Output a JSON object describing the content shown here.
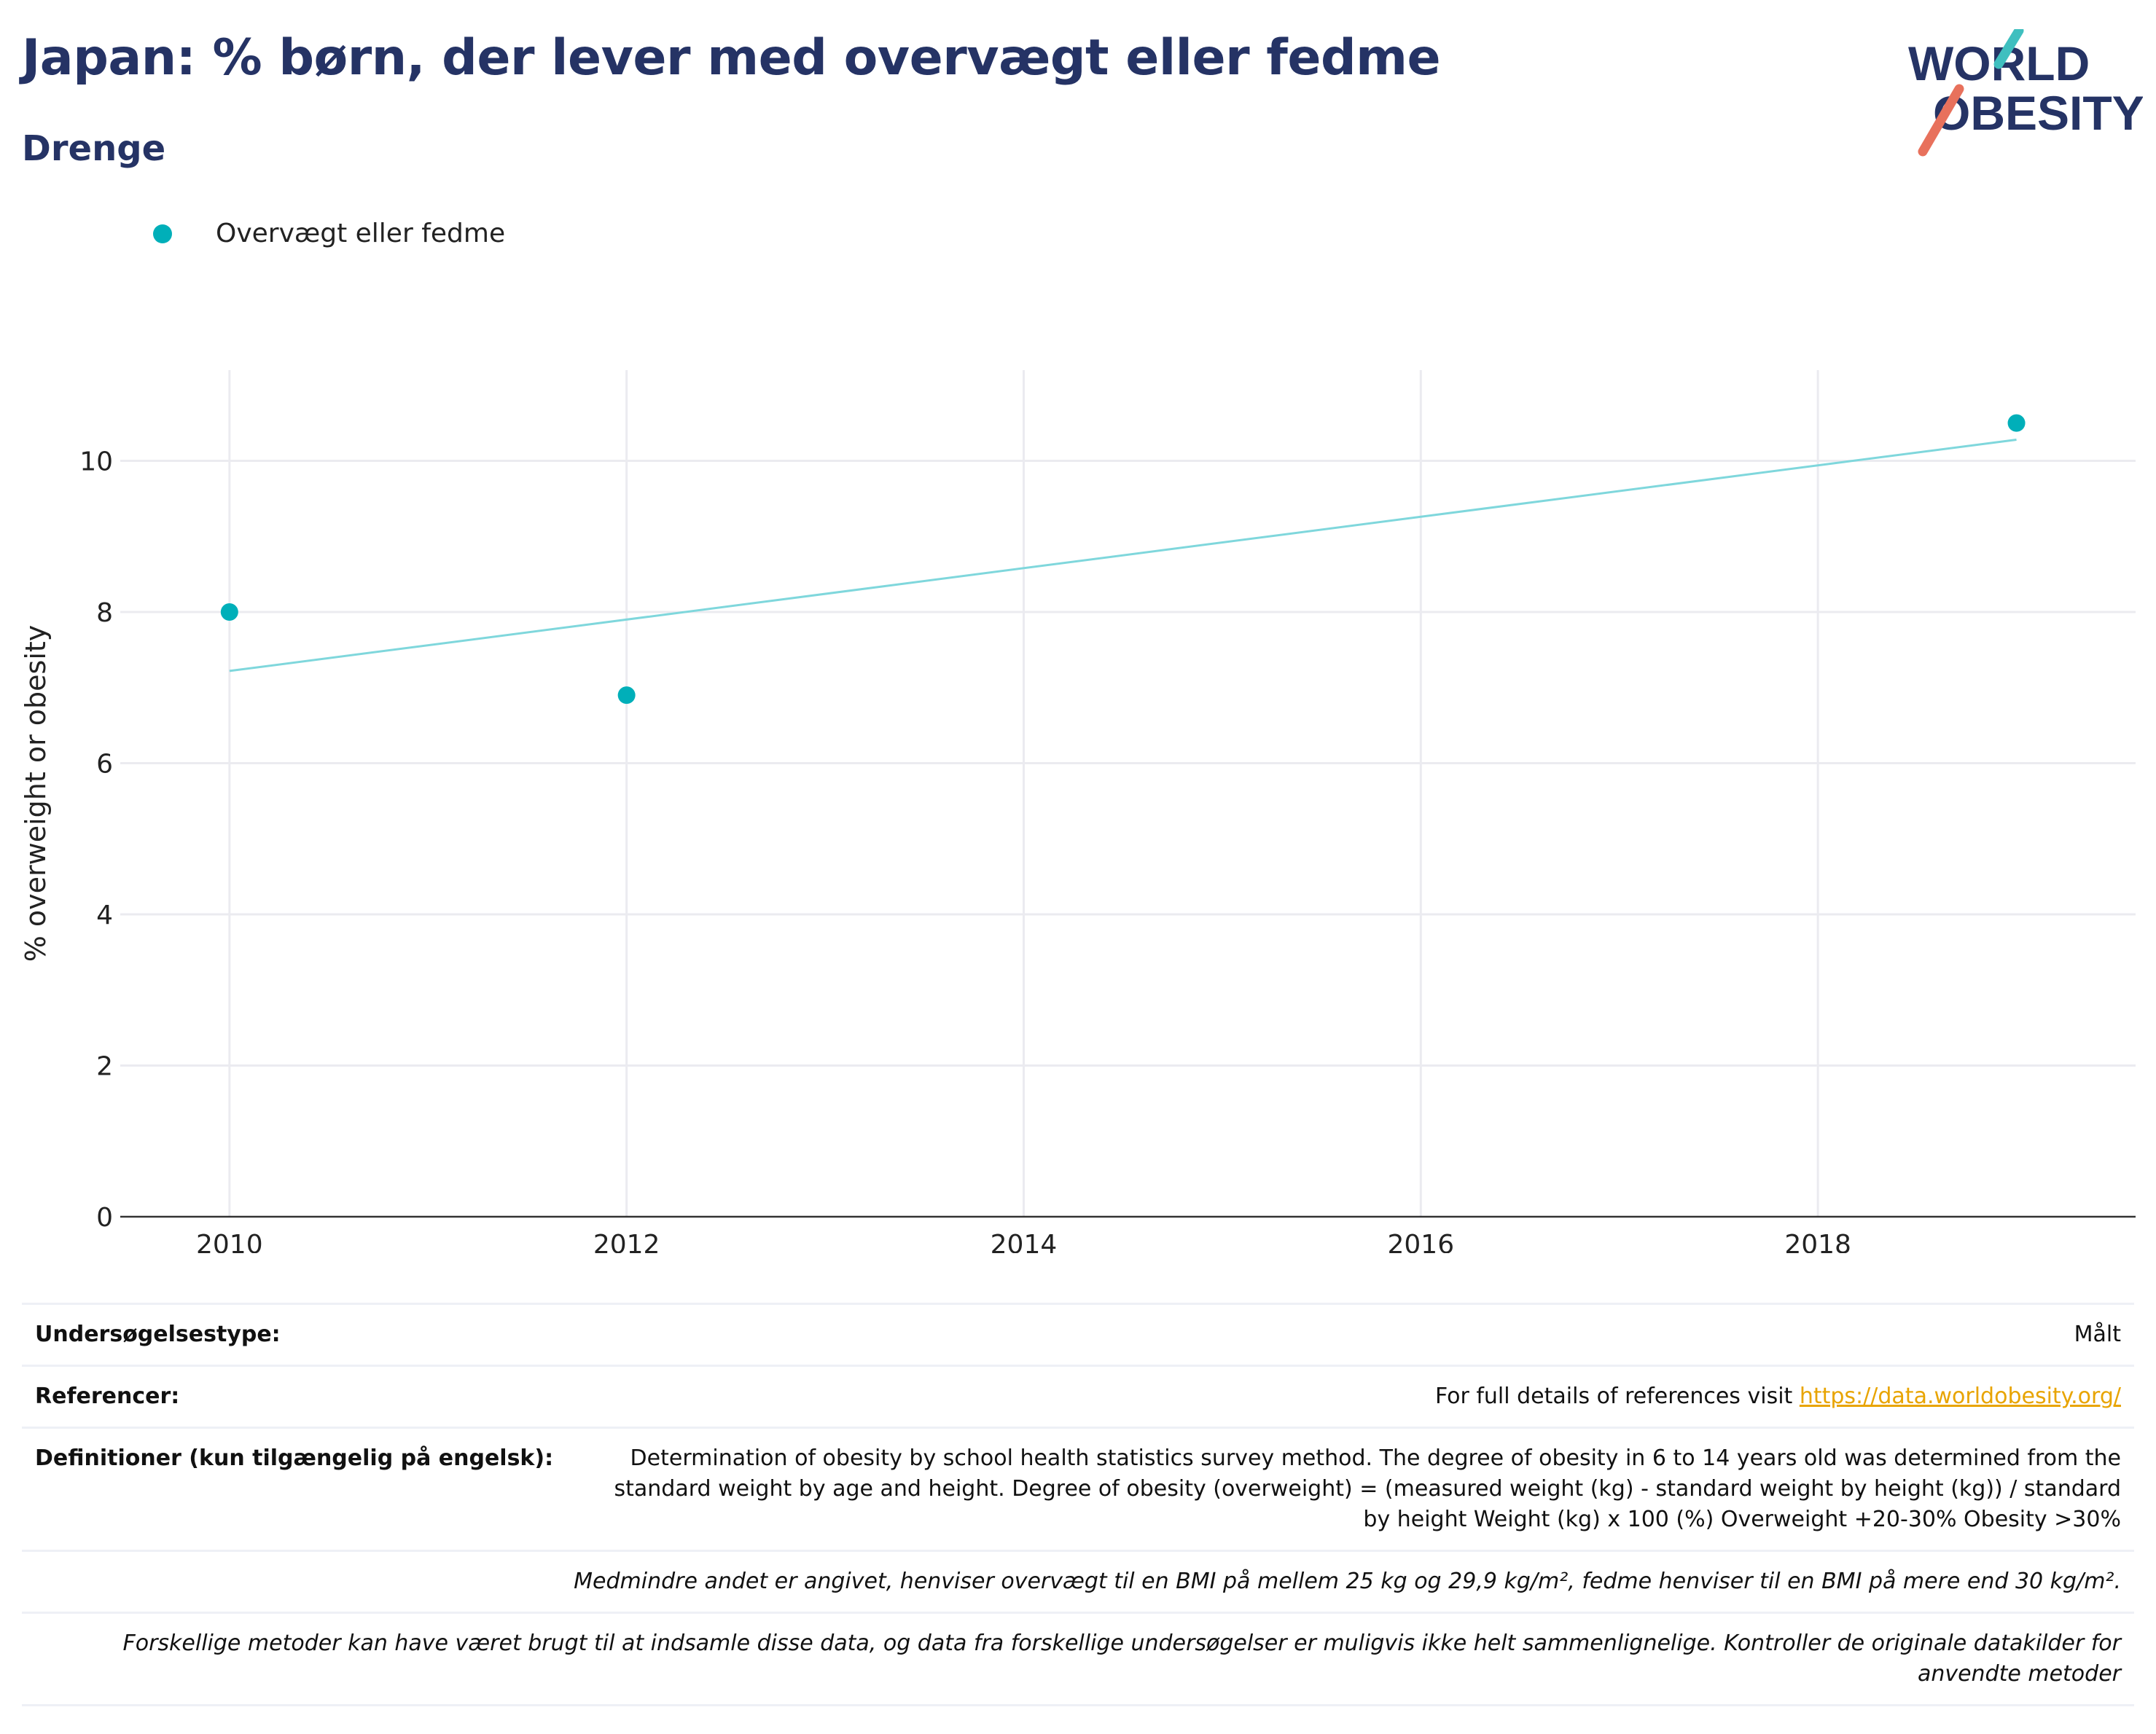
{
  "header": {
    "title": "Japan: % børn, der lever med overvægt eller fedme",
    "subtitle": "Drenge"
  },
  "logo": {
    "line1": "WORLD",
    "line2": "OBESITY"
  },
  "legend": {
    "label": "Overvægt eller fedme"
  },
  "colors": {
    "title": "#253365",
    "series": "#00AFB9",
    "trend": "#7fd7dc",
    "grid": "#ebebf0",
    "link": "#e8a400",
    "logo_teal": "#3fbfbf",
    "logo_coral": "#e8715c"
  },
  "chart_data": {
    "type": "scatter",
    "series": [
      {
        "name": "Overvægt eller fedme",
        "points": [
          {
            "x": 2010,
            "y": 8.0
          },
          {
            "x": 2012,
            "y": 6.9
          },
          {
            "x": 2019,
            "y": 10.5
          }
        ]
      }
    ],
    "trendline": [
      {
        "x": 2010,
        "y": 7.22
      },
      {
        "x": 2019,
        "y": 10.28
      }
    ],
    "xlabel": "",
    "ylabel": "% overweight or obesity",
    "xlim": [
      2009.45,
      2019.6
    ],
    "ylim": [
      0,
      11.2
    ],
    "xticks": [
      2010,
      2012,
      2014,
      2016,
      2018
    ],
    "yticks": [
      0,
      2,
      4,
      6,
      8,
      10
    ],
    "grid": true,
    "legend_position": "top-left"
  },
  "info": {
    "survey_type_label": "Undersøgelsestype:",
    "survey_type_value": "Målt",
    "references_label": "Referencer:",
    "references_text": "For full details of references visit ",
    "references_link": "https://data.worldobesity.org/",
    "definitions_label": "Definitioner (kun tilgængelig på engelsk):",
    "definitions_text": "Determination of obesity by school health statistics survey method. The degree of obesity in 6 to 14 years old was determined from the standard weight by age and height. Degree of obesity (overweight) = (measured weight (kg) - standard weight by height (kg)) / standard by height Weight (kg) x 100 (%) Overweight +20-30% Obesity >30%",
    "bmi_note": "Medmindre andet er angivet, henviser overvægt til en BMI på mellem 25 kg og 29,9 kg/m², fedme henviser til en BMI på mere end 30 kg/m².",
    "methods_note": "Forskellige metoder kan have været brugt til at indsamle disse data, og data fra forskellige undersøgelser er muligvis ikke helt sammenlignelige. Kontroller de originale datakilder for anvendte metoder"
  }
}
